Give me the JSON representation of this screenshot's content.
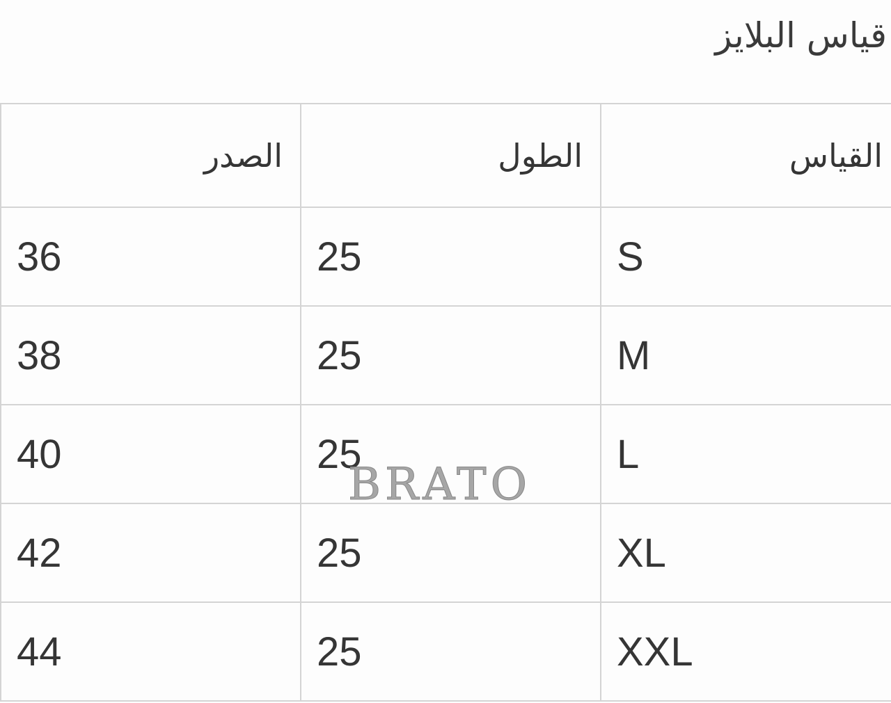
{
  "title": "قياس البلايز",
  "table": {
    "headers": [
      "الصدر",
      "الطول",
      "القياس"
    ],
    "rows": [
      [
        "36",
        "25",
        "S"
      ],
      [
        "38",
        "25",
        "M"
      ],
      [
        "40",
        "25",
        "L"
      ],
      [
        "42",
        "25",
        "XL"
      ],
      [
        "44",
        "25",
        "XXL"
      ]
    ]
  },
  "watermark": "BRATO"
}
